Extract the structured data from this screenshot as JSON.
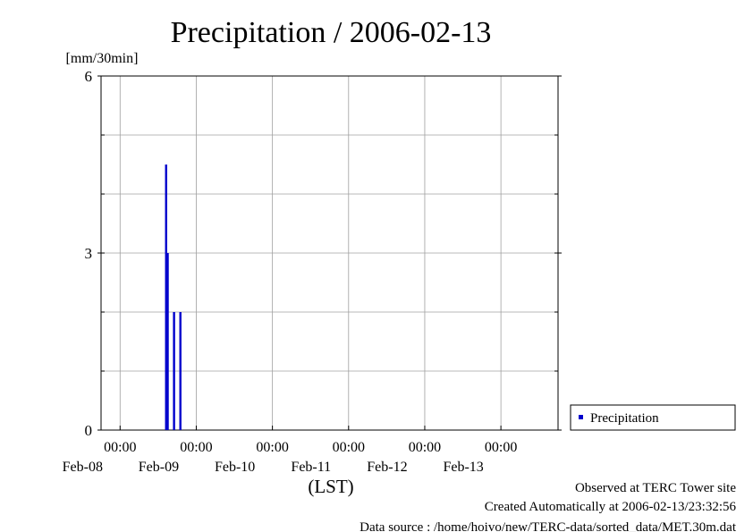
{
  "chart_data": {
    "type": "bar",
    "title": "Precipitation / 2006-02-13",
    "ylabel": "[mm/30min]",
    "xlabel": "(LST)",
    "ylim": [
      0,
      6
    ],
    "yticks": [
      "0",
      "3",
      "6"
    ],
    "xlim": [
      "2006-02-07T18:00",
      "2006-02-13T18:00"
    ],
    "xticks": [
      {
        "time": "00:00",
        "date": "Feb-08",
        "x": "2006-02-08T00:00"
      },
      {
        "time": "00:00",
        "date": "Feb-09",
        "x": "2006-02-09T00:00"
      },
      {
        "time": "00:00",
        "date": "Feb-10",
        "x": "2006-02-10T00:00"
      },
      {
        "time": "00:00",
        "date": "Feb-11",
        "x": "2006-02-11T00:00"
      },
      {
        "time": "00:00",
        "date": "Feb-12",
        "x": "2006-02-12T00:00"
      },
      {
        "time": "00:00",
        "date": "Feb-13",
        "x": "2006-02-13T00:00"
      }
    ],
    "grid": true,
    "legend_position": "right",
    "series": [
      {
        "name": "Precipitation",
        "color": "#0000cc",
        "points": [
          {
            "x": "2006-02-08T14:30",
            "y": 4.5
          },
          {
            "x": "2006-02-08T15:00",
            "y": 3.0
          },
          {
            "x": "2006-02-08T17:00",
            "y": 2.0
          },
          {
            "x": "2006-02-08T19:00",
            "y": 2.0
          }
        ]
      }
    ]
  },
  "footer": {
    "observed": "Observed at TERC Tower site",
    "created": "Created Automatically at 2006-02-13/23:32:56",
    "source": "Data source : /home/hoivo/new/TERC-data/sorted_data/MET.30m.dat"
  }
}
